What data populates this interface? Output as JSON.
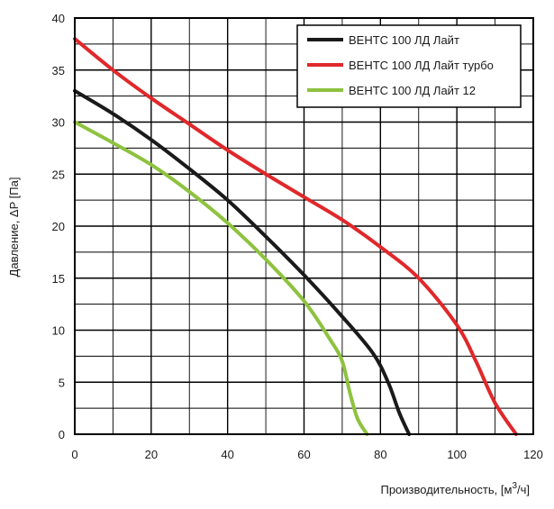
{
  "chart_data": {
    "type": "line",
    "title": "",
    "xlabel": "Производительность, [м",
    "xlabel_sup": "3",
    "xlabel_tail": "/ч]",
    "ylabel": "Давление, ΔP [Па]",
    "xlim": [
      0,
      120
    ],
    "ylim": [
      0,
      40
    ],
    "x_ticks": [
      "0",
      "20",
      "40",
      "60",
      "80",
      "100",
      "120"
    ],
    "y_ticks": [
      "0",
      "5",
      "10",
      "15",
      "20",
      "25",
      "30",
      "35",
      "40"
    ],
    "grid": true,
    "legend_position": "top-right",
    "series": [
      {
        "name": "ВЕНТС 100 ЛД Лайт",
        "color": "#1a1a1a",
        "points": [
          [
            0,
            33
          ],
          [
            10,
            30.8
          ],
          [
            20,
            28.3
          ],
          [
            30,
            25.5
          ],
          [
            40,
            22.5
          ],
          [
            50,
            19
          ],
          [
            60,
            15.3
          ],
          [
            70,
            11.3
          ],
          [
            78,
            7.8
          ],
          [
            82,
            5
          ],
          [
            85,
            2
          ],
          [
            87.5,
            0
          ]
        ]
      },
      {
        "name": "ВЕНТС 100 ЛД Лайт турбо",
        "color": "#e0282a",
        "points": [
          [
            0,
            38
          ],
          [
            10,
            35
          ],
          [
            20,
            32.3
          ],
          [
            30,
            29.8
          ],
          [
            40,
            27.3
          ],
          [
            50,
            25
          ],
          [
            60,
            22.8
          ],
          [
            70,
            20.6
          ],
          [
            80,
            18
          ],
          [
            90,
            15
          ],
          [
            100,
            10.5
          ],
          [
            105,
            7
          ],
          [
            110,
            3
          ],
          [
            115.5,
            0
          ]
        ]
      },
      {
        "name": "ВЕНТС 100 ЛД Лайт 12",
        "color": "#8ec23f",
        "points": [
          [
            0,
            30
          ],
          [
            10,
            28
          ],
          [
            20,
            25.9
          ],
          [
            30,
            23.3
          ],
          [
            40,
            20.3
          ],
          [
            50,
            16.8
          ],
          [
            60,
            12.8
          ],
          [
            67,
            9
          ],
          [
            70,
            7
          ],
          [
            72,
            4
          ],
          [
            74,
            1.5
          ],
          [
            76.5,
            0
          ]
        ]
      }
    ]
  }
}
